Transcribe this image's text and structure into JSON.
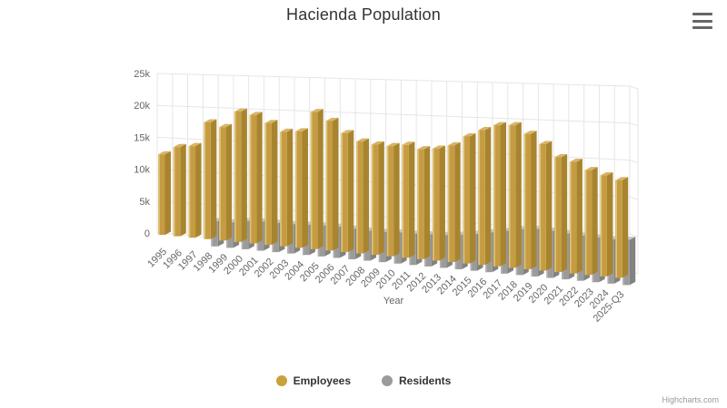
{
  "chart_data": {
    "type": "bar",
    "variant": "3d-column",
    "title": "Hacienda Population",
    "xlabel": "Year",
    "ylabel": "",
    "ylim": [
      0,
      25000
    ],
    "grid": true,
    "legend_position": "bottom",
    "categories": [
      "1995",
      "1996",
      "1997",
      "1998",
      "1999",
      "2000",
      "2001",
      "2002",
      "2003",
      "2004",
      "2005",
      "2006",
      "2007",
      "2008",
      "2009",
      "2010",
      "2011",
      "2012",
      "2013",
      "2014",
      "2015",
      "2016",
      "2017",
      "2018",
      "2019",
      "2020",
      "2021",
      "2022",
      "2023",
      "2024",
      "2025-Q3"
    ],
    "series": [
      {
        "name": "Employees",
        "values": [
          12600,
          13900,
          14200,
          18000,
          17400,
          19900,
          19500,
          18400,
          17200,
          17400,
          20400,
          19200,
          17500,
          16400,
          16100,
          16000,
          16300,
          15800,
          16000,
          16600,
          18000,
          19000,
          19800,
          19900,
          18800,
          17500,
          15800,
          15300,
          14300,
          13700,
          13200
        ],
        "colors": {
          "front": "#C59C41",
          "top": "#D7B565",
          "side": "#A8842F",
          "edge": "#DFC176",
          "legend": "#C9A23C"
        }
      },
      {
        "name": "Residents",
        "values": [
          null,
          null,
          null,
          3900,
          3900,
          4300,
          4400,
          4400,
          4400,
          4500,
          4600,
          4600,
          4500,
          4400,
          4400,
          4500,
          4500,
          4600,
          4700,
          4900,
          5200,
          5600,
          6000,
          6400,
          6600,
          6500,
          6300,
          6200,
          6100,
          6000,
          6100
        ],
        "colors": {
          "front": "#9B9B9B",
          "top": "#C6C6C6",
          "side": "#828282",
          "edge": "#AFAFAF",
          "legend": "#9B9B9B"
        }
      }
    ],
    "yticks": {
      "values": [
        0,
        5000,
        10000,
        15000,
        20000,
        25000
      ],
      "labels": [
        "0",
        "5k",
        "10k",
        "15k",
        "20k",
        "25k"
      ]
    },
    "gridline_color": "#E6E6E6",
    "credits": "Highcharts.com"
  },
  "menu": {
    "tooltip": "Chart context menu"
  }
}
